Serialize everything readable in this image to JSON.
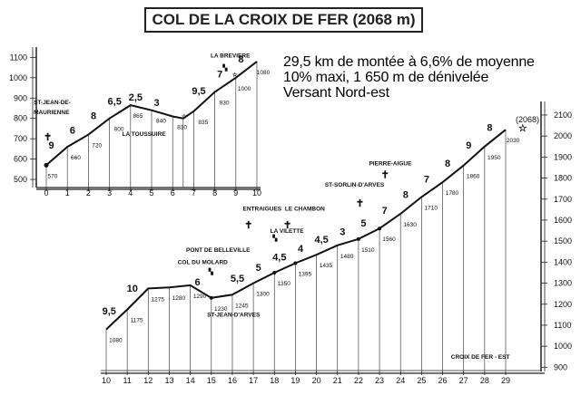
{
  "title": "COL DE LA CROIX DE FER (2068 m)",
  "info": [
    "29,5 km de montée à 6,6% de moyenne",
    "10% maxi, 1 650 m de dénivelée",
    "Versant Nord-est"
  ],
  "summit_label": "(2068)",
  "chart_data": [
    {
      "type": "line",
      "name": "upper",
      "x": [
        0,
        1,
        2,
        3,
        4,
        5,
        6,
        6.5,
        7,
        8,
        9,
        10
      ],
      "y": [
        570,
        660,
        720,
        800,
        865,
        840,
        810,
        800,
        835,
        930,
        1000,
        1080
      ],
      "xticks": [
        "0",
        "1",
        "2",
        "3",
        "4",
        "5",
        "6",
        "7",
        "8",
        "9",
        "10"
      ],
      "yticks": [
        "500",
        "600",
        "700",
        "800",
        "900",
        "1000",
        "1100"
      ],
      "xlim": [
        0,
        10
      ],
      "ylim": [
        460,
        1115
      ],
      "altitude_labels": [
        {
          "x": 0.3,
          "y": 570,
          "text": "570"
        },
        {
          "x": 1.4,
          "y": 660,
          "text": "660"
        },
        {
          "x": 2.4,
          "y": 720,
          "text": "720"
        },
        {
          "x": 3.45,
          "y": 800,
          "text": "800"
        },
        {
          "x": 4.35,
          "y": 865,
          "text": "865"
        },
        {
          "x": 5.45,
          "y": 840,
          "text": "840"
        },
        {
          "x": 6.45,
          "y": 810,
          "text": "810"
        },
        {
          "x": 7.45,
          "y": 835,
          "text": "835"
        },
        {
          "x": 8.45,
          "y": 930,
          "text": "930"
        },
        {
          "x": 9.4,
          "y": 1000,
          "text": "1000"
        },
        {
          "x": 10.3,
          "y": 1080,
          "text": "1080"
        }
      ],
      "gradients": [
        {
          "x": 0.5,
          "text": "9"
        },
        {
          "x": 1.5,
          "text": "6"
        },
        {
          "x": 2.5,
          "text": "8"
        },
        {
          "x": 3.5,
          "text": "6,5"
        },
        {
          "x": 4.5,
          "text": "2,5"
        },
        {
          "x": 5.5,
          "text": "3"
        },
        {
          "x": 7.5,
          "text": "9,5"
        },
        {
          "x": 8.5,
          "text": "7"
        },
        {
          "x": 9.5,
          "text": "8"
        }
      ],
      "places": [
        {
          "text": "ST-JEAN-DE-",
          "x": -0.6,
          "y": 870
        },
        {
          "text": "MAURIENNE",
          "x": -0.6,
          "y": 820
        },
        {
          "text": "LA TOUSSUIRE",
          "x": 3.6,
          "y": 715
        },
        {
          "text": "LA BREVIERE",
          "x": 7.8,
          "y": 1100
        }
      ]
    },
    {
      "type": "line",
      "name": "lower",
      "x": [
        10,
        11,
        12,
        13,
        14,
        15,
        16,
        17,
        18,
        19,
        20,
        21,
        22,
        23,
        24,
        25,
        26,
        27,
        28,
        29
      ],
      "y": [
        1080,
        1175,
        1275,
        1280,
        1290,
        1230,
        1245,
        1300,
        1350,
        1395,
        1435,
        1480,
        1510,
        1560,
        1630,
        1710,
        1780,
        1860,
        1950,
        2030
      ],
      "xticks": [
        "10",
        "11",
        "12",
        "13",
        "14",
        "15",
        "16",
        "17",
        "18",
        "19",
        "20",
        "21",
        "22",
        "23",
        "24",
        "25",
        "26",
        "27",
        "28",
        "29"
      ],
      "yticks": [
        "900",
        "1000",
        "1100",
        "1200",
        "1300",
        "1400",
        "1500",
        "1600",
        "1700",
        "1800",
        "1900",
        "2000",
        "2100"
      ],
      "xlim": [
        10,
        29.5
      ],
      "ylim": [
        880,
        2130
      ],
      "altitude_labels": [
        {
          "x": 10.45,
          "y": 1080,
          "text": "1080"
        },
        {
          "x": 11.45,
          "y": 1175,
          "text": "1175"
        },
        {
          "x": 12.45,
          "y": 1275,
          "text": "1275"
        },
        {
          "x": 13.45,
          "y": 1280,
          "text": "1280"
        },
        {
          "x": 14.45,
          "y": 1290,
          "text": "1290"
        },
        {
          "x": 15.45,
          "y": 1230,
          "text": "1230"
        },
        {
          "x": 16.45,
          "y": 1245,
          "text": "1245"
        },
        {
          "x": 17.45,
          "y": 1300,
          "text": "1300"
        },
        {
          "x": 18.45,
          "y": 1350,
          "text": "1350"
        },
        {
          "x": 19.45,
          "y": 1395,
          "text": "1395"
        },
        {
          "x": 20.45,
          "y": 1435,
          "text": "1435"
        },
        {
          "x": 21.45,
          "y": 1480,
          "text": "1480"
        },
        {
          "x": 22.45,
          "y": 1510,
          "text": "1510"
        },
        {
          "x": 23.45,
          "y": 1560,
          "text": "1560"
        },
        {
          "x": 24.45,
          "y": 1630,
          "text": "1630"
        },
        {
          "x": 25.45,
          "y": 1710,
          "text": "1710"
        },
        {
          "x": 26.45,
          "y": 1780,
          "text": "1780"
        },
        {
          "x": 27.45,
          "y": 1860,
          "text": "1860"
        },
        {
          "x": 28.45,
          "y": 1950,
          "text": "1950"
        },
        {
          "x": 29.35,
          "y": 2030,
          "text": "2030"
        }
      ],
      "gradients": [
        {
          "x": 10.4,
          "text": "9,5"
        },
        {
          "x": 11.5,
          "text": "10"
        },
        {
          "x": 14.6,
          "text": "6"
        },
        {
          "x": 16.5,
          "text": "5,5"
        },
        {
          "x": 17.5,
          "text": "5"
        },
        {
          "x": 18.5,
          "text": "4,5"
        },
        {
          "x": 19.5,
          "text": "4"
        },
        {
          "x": 20.5,
          "text": "4,5"
        },
        {
          "x": 21.5,
          "text": "3"
        },
        {
          "x": 22.5,
          "text": "5"
        },
        {
          "x": 23.5,
          "text": "7"
        },
        {
          "x": 24.5,
          "text": "8"
        },
        {
          "x": 25.5,
          "text": "7"
        },
        {
          "x": 26.5,
          "text": "8"
        },
        {
          "x": 27.5,
          "text": "9"
        },
        {
          "x": 28.5,
          "text": "8"
        }
      ],
      "places": [
        {
          "text": "PONT DE BELLEVILLE",
          "x": 13.8,
          "y": 1450
        },
        {
          "text": "COL DU MOLARD",
          "x": 13.4,
          "y": 1390
        },
        {
          "text": "ST-JEAN-D'ARVES",
          "x": 14.8,
          "y": 1140
        },
        {
          "text": "ENTRAIGUES",
          "x": 16.5,
          "y": 1645
        },
        {
          "text": "LE CHAMBON",
          "x": 18.5,
          "y": 1645
        },
        {
          "text": "LA VILETTE",
          "x": 17.8,
          "y": 1540
        },
        {
          "text": "ST-SORLIN-D'ARVES",
          "x": 20.4,
          "y": 1760
        },
        {
          "text": "PIERRE-AIGUE",
          "x": 22.5,
          "y": 1860
        },
        {
          "text": "CROIX DE FER - EST",
          "x": 26.4,
          "y": 940
        }
      ]
    }
  ]
}
